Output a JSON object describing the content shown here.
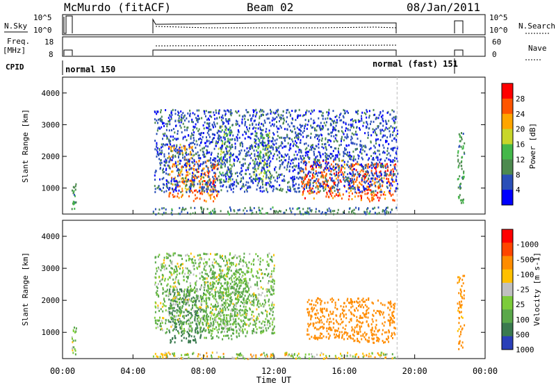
{
  "header": {
    "station": "McMurdo (fitACF)",
    "beam": "Beam 02",
    "date": "08/Jan/2011"
  },
  "panels": {
    "nsky_label": "N.Sky",
    "nsearch_label": "N.Search",
    "freq_label": "Freq.",
    "freq_unit": "[MHz]",
    "nave_label": "Nave",
    "cpid_label": "CPID",
    "nsky_ticks": [
      "10^5",
      "10^0"
    ],
    "nsearch_ticks": [
      "10^5",
      "10^0"
    ],
    "freq_ticks": [
      "18",
      "8"
    ],
    "nave_ticks": [
      "60",
      "0"
    ],
    "cpid_modes": [
      "normal 150",
      "normal (fast) 151"
    ]
  },
  "chart_data": [
    {
      "type": "heatmap",
      "title": "",
      "ylabel": "Slant Range [km]",
      "xlabel": "Time UT",
      "x_ticks": [
        "00:00",
        "04:00",
        "08:00",
        "12:00",
        "16:00",
        "20:00",
        "00:00"
      ],
      "y_ticks": [
        "1000",
        "2000",
        "3000",
        "4000"
      ],
      "ylim": [
        180,
        4500
      ],
      "colorbar": {
        "label": "Power [dB]",
        "ticks": [
          "4",
          "8",
          "12",
          "16",
          "20",
          "24",
          "28"
        ],
        "colors": [
          "#0000ff",
          "#2a4fb8",
          "#4d8a4f",
          "#44b84a",
          "#c8d62a",
          "#ffa500",
          "#ff5500",
          "#ff0000"
        ]
      },
      "patches": [
        {
          "t_start": 0.5,
          "t_end": 0.75,
          "r_start": 300,
          "r_end": 1200,
          "value": 10
        },
        {
          "t_start": 5.1,
          "t_end": 19.0,
          "r_start": 200,
          "r_end": 420,
          "value": 9
        },
        {
          "t_start": 6.0,
          "t_end": 7.4,
          "r_start": 700,
          "r_end": 2400,
          "value": 23
        },
        {
          "t_start": 7.4,
          "t_end": 8.8,
          "r_start": 600,
          "r_end": 1900,
          "value": 25
        },
        {
          "t_start": 8.8,
          "t_end": 9.6,
          "r_start": 1200,
          "r_end": 3000,
          "value": 14
        },
        {
          "t_start": 10.8,
          "t_end": 11.8,
          "r_start": 1200,
          "r_end": 2800,
          "value": 15
        },
        {
          "t_start": 13.5,
          "t_end": 16.0,
          "r_start": 700,
          "r_end": 1900,
          "value": 26
        },
        {
          "t_start": 16.2,
          "t_end": 18.9,
          "r_start": 600,
          "r_end": 1800,
          "value": 26
        },
        {
          "t_start": 5.2,
          "t_end": 19.0,
          "r_start": 900,
          "r_end": 3500,
          "value": 6
        },
        {
          "t_start": 22.4,
          "t_end": 22.8,
          "r_start": 500,
          "r_end": 2800,
          "value": 10
        }
      ]
    },
    {
      "type": "heatmap",
      "title": "",
      "ylabel": "Slant Range [km]",
      "xlabel": "Time UT",
      "x_ticks": [
        "00:00",
        "04:00",
        "08:00",
        "12:00",
        "16:00",
        "20:00",
        "00:00"
      ],
      "y_ticks": [
        "1000",
        "2000",
        "3000",
        "4000"
      ],
      "ylim": [
        180,
        4500
      ],
      "colorbar": {
        "label": "Velocity [m s-1]",
        "ticks": [
          "1000",
          "500",
          "100",
          "25",
          "-25",
          "-100",
          "-500",
          "-1000"
        ],
        "colors": [
          "#2a3fb8",
          "#3a7a4f",
          "#5aa84a",
          "#7ccc3a",
          "#c0c0c0",
          "#ffc000",
          "#ff8c00",
          "#ff4500",
          "#ff0000"
        ]
      },
      "patches": [
        {
          "t_start": 0.5,
          "t_end": 0.75,
          "r_start": 200,
          "r_end": 1200,
          "value": 100
        },
        {
          "t_start": 5.1,
          "t_end": 19.0,
          "r_start": 200,
          "r_end": 400,
          "value": 0
        },
        {
          "t_start": 6.0,
          "t_end": 8.0,
          "r_start": 700,
          "r_end": 2400,
          "value": 800
        },
        {
          "t_start": 8.0,
          "t_end": 10.5,
          "r_start": 800,
          "r_end": 3000,
          "value": 200
        },
        {
          "t_start": 13.8,
          "t_end": 16.2,
          "r_start": 800,
          "r_end": 2100,
          "value": -300
        },
        {
          "t_start": 16.2,
          "t_end": 18.9,
          "r_start": 700,
          "r_end": 2100,
          "value": -300
        },
        {
          "t_start": 5.2,
          "t_end": 12.0,
          "r_start": 1000,
          "r_end": 3500,
          "value": 100
        },
        {
          "t_start": 22.4,
          "t_end": 22.8,
          "r_start": 500,
          "r_end": 2800,
          "value": -200
        }
      ]
    }
  ]
}
